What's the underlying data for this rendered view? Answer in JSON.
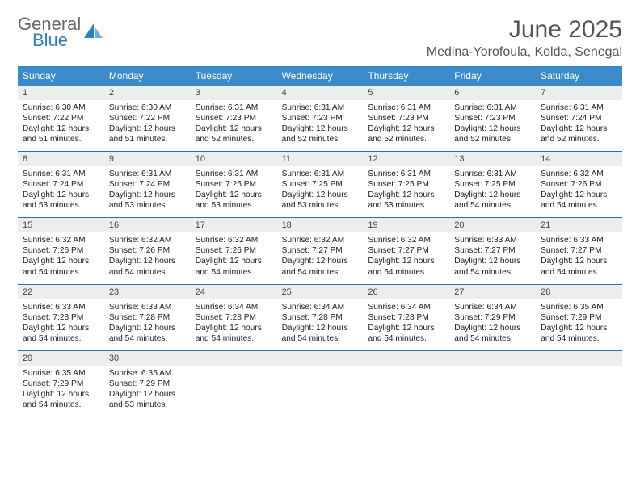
{
  "logo": {
    "line1": "General",
    "line2": "Blue"
  },
  "title": "June 2025",
  "location": "Medina-Yorofoula, Kolda, Senegal",
  "colors": {
    "header_bg": "#3b8bca",
    "header_text": "#ffffff",
    "daynum_bg": "#eceded",
    "row_border": "#2f6fa3",
    "logo_gray": "#6a6a6a",
    "logo_blue": "#2f7fc3",
    "title_color": "#555555",
    "body_text": "#222222",
    "background": "#ffffff"
  },
  "weekdays": [
    "Sunday",
    "Monday",
    "Tuesday",
    "Wednesday",
    "Thursday",
    "Friday",
    "Saturday"
  ],
  "weeks": [
    [
      {
        "n": "1",
        "sr": "6:30 AM",
        "ss": "7:22 PM",
        "dl1": "12 hours",
        "dl2": "and 51 minutes."
      },
      {
        "n": "2",
        "sr": "6:30 AM",
        "ss": "7:22 PM",
        "dl1": "12 hours",
        "dl2": "and 51 minutes."
      },
      {
        "n": "3",
        "sr": "6:31 AM",
        "ss": "7:23 PM",
        "dl1": "12 hours",
        "dl2": "and 52 minutes."
      },
      {
        "n": "4",
        "sr": "6:31 AM",
        "ss": "7:23 PM",
        "dl1": "12 hours",
        "dl2": "and 52 minutes."
      },
      {
        "n": "5",
        "sr": "6:31 AM",
        "ss": "7:23 PM",
        "dl1": "12 hours",
        "dl2": "and 52 minutes."
      },
      {
        "n": "6",
        "sr": "6:31 AM",
        "ss": "7:23 PM",
        "dl1": "12 hours",
        "dl2": "and 52 minutes."
      },
      {
        "n": "7",
        "sr": "6:31 AM",
        "ss": "7:24 PM",
        "dl1": "12 hours",
        "dl2": "and 52 minutes."
      }
    ],
    [
      {
        "n": "8",
        "sr": "6:31 AM",
        "ss": "7:24 PM",
        "dl1": "12 hours",
        "dl2": "and 53 minutes."
      },
      {
        "n": "9",
        "sr": "6:31 AM",
        "ss": "7:24 PM",
        "dl1": "12 hours",
        "dl2": "and 53 minutes."
      },
      {
        "n": "10",
        "sr": "6:31 AM",
        "ss": "7:25 PM",
        "dl1": "12 hours",
        "dl2": "and 53 minutes."
      },
      {
        "n": "11",
        "sr": "6:31 AM",
        "ss": "7:25 PM",
        "dl1": "12 hours",
        "dl2": "and 53 minutes."
      },
      {
        "n": "12",
        "sr": "6:31 AM",
        "ss": "7:25 PM",
        "dl1": "12 hours",
        "dl2": "and 53 minutes."
      },
      {
        "n": "13",
        "sr": "6:31 AM",
        "ss": "7:25 PM",
        "dl1": "12 hours",
        "dl2": "and 54 minutes."
      },
      {
        "n": "14",
        "sr": "6:32 AM",
        "ss": "7:26 PM",
        "dl1": "12 hours",
        "dl2": "and 54 minutes."
      }
    ],
    [
      {
        "n": "15",
        "sr": "6:32 AM",
        "ss": "7:26 PM",
        "dl1": "12 hours",
        "dl2": "and 54 minutes."
      },
      {
        "n": "16",
        "sr": "6:32 AM",
        "ss": "7:26 PM",
        "dl1": "12 hours",
        "dl2": "and 54 minutes."
      },
      {
        "n": "17",
        "sr": "6:32 AM",
        "ss": "7:26 PM",
        "dl1": "12 hours",
        "dl2": "and 54 minutes."
      },
      {
        "n": "18",
        "sr": "6:32 AM",
        "ss": "7:27 PM",
        "dl1": "12 hours",
        "dl2": "and 54 minutes."
      },
      {
        "n": "19",
        "sr": "6:32 AM",
        "ss": "7:27 PM",
        "dl1": "12 hours",
        "dl2": "and 54 minutes."
      },
      {
        "n": "20",
        "sr": "6:33 AM",
        "ss": "7:27 PM",
        "dl1": "12 hours",
        "dl2": "and 54 minutes."
      },
      {
        "n": "21",
        "sr": "6:33 AM",
        "ss": "7:27 PM",
        "dl1": "12 hours",
        "dl2": "and 54 minutes."
      }
    ],
    [
      {
        "n": "22",
        "sr": "6:33 AM",
        "ss": "7:28 PM",
        "dl1": "12 hours",
        "dl2": "and 54 minutes."
      },
      {
        "n": "23",
        "sr": "6:33 AM",
        "ss": "7:28 PM",
        "dl1": "12 hours",
        "dl2": "and 54 minutes."
      },
      {
        "n": "24",
        "sr": "6:34 AM",
        "ss": "7:28 PM",
        "dl1": "12 hours",
        "dl2": "and 54 minutes."
      },
      {
        "n": "25",
        "sr": "6:34 AM",
        "ss": "7:28 PM",
        "dl1": "12 hours",
        "dl2": "and 54 minutes."
      },
      {
        "n": "26",
        "sr": "6:34 AM",
        "ss": "7:28 PM",
        "dl1": "12 hours",
        "dl2": "and 54 minutes."
      },
      {
        "n": "27",
        "sr": "6:34 AM",
        "ss": "7:29 PM",
        "dl1": "12 hours",
        "dl2": "and 54 minutes."
      },
      {
        "n": "28",
        "sr": "6:35 AM",
        "ss": "7:29 PM",
        "dl1": "12 hours",
        "dl2": "and 54 minutes."
      }
    ],
    [
      {
        "n": "29",
        "sr": "6:35 AM",
        "ss": "7:29 PM",
        "dl1": "12 hours",
        "dl2": "and 54 minutes."
      },
      {
        "n": "30",
        "sr": "6:35 AM",
        "ss": "7:29 PM",
        "dl1": "12 hours",
        "dl2": "and 53 minutes."
      },
      null,
      null,
      null,
      null,
      null
    ]
  ],
  "labels": {
    "sunrise_prefix": "Sunrise: ",
    "sunset_prefix": "Sunset: ",
    "daylight_prefix": "Daylight: "
  }
}
